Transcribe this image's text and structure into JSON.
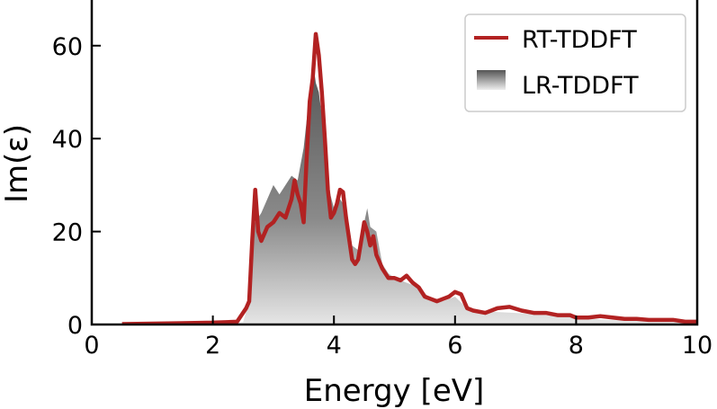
{
  "chart_data": {
    "type": "line",
    "title": "",
    "xlabel": "Energy [eV]",
    "ylabel": "Im(ε)",
    "xlim": [
      0,
      10
    ],
    "ylim": [
      0,
      70
    ],
    "xticks": [
      0,
      2,
      4,
      6,
      8,
      10
    ],
    "yticks": [
      0,
      20,
      40,
      60
    ],
    "grid": false,
    "legend_position": "upper right",
    "series": [
      {
        "name": "RT-TDDFT",
        "style": "line",
        "color": "#b22222",
        "x": [
          0.5,
          1.0,
          1.5,
          2.0,
          2.4,
          2.55,
          2.6,
          2.65,
          2.7,
          2.75,
          2.8,
          2.9,
          3.0,
          3.1,
          3.2,
          3.3,
          3.35,
          3.4,
          3.45,
          3.5,
          3.55,
          3.6,
          3.65,
          3.7,
          3.75,
          3.8,
          3.85,
          3.9,
          3.95,
          4.0,
          4.05,
          4.1,
          4.15,
          4.2,
          4.3,
          4.35,
          4.4,
          4.5,
          4.55,
          4.6,
          4.65,
          4.7,
          4.8,
          4.9,
          5.0,
          5.1,
          5.2,
          5.3,
          5.4,
          5.5,
          5.6,
          5.7,
          5.8,
          5.9,
          6.0,
          6.1,
          6.2,
          6.3,
          6.5,
          6.7,
          6.9,
          7.1,
          7.3,
          7.5,
          7.7,
          7.9,
          8.0,
          8.2,
          8.4,
          8.6,
          8.8,
          9.0,
          9.2,
          9.4,
          9.6,
          9.8,
          10.0
        ],
        "y": [
          0.1,
          0.2,
          0.3,
          0.4,
          0.6,
          3.5,
          5.0,
          18.0,
          29.0,
          20.0,
          18.0,
          21.0,
          22.0,
          24.0,
          23.0,
          27.0,
          31.0,
          28.0,
          26.0,
          22.0,
          36.0,
          48.0,
          53.0,
          62.5,
          58.0,
          50.0,
          40.0,
          29.0,
          23.0,
          24.0,
          26.0,
          29.0,
          28.5,
          23.0,
          14.0,
          13.0,
          14.0,
          22.0,
          20.0,
          17.0,
          19.0,
          15.0,
          12.0,
          10.0,
          10.0,
          9.5,
          10.5,
          9.0,
          8.0,
          6.0,
          5.5,
          5.0,
          5.5,
          6.0,
          7.0,
          6.5,
          3.5,
          3.0,
          2.5,
          3.5,
          3.8,
          3.0,
          2.5,
          2.5,
          2.0,
          2.0,
          1.5,
          1.5,
          1.8,
          1.5,
          1.2,
          1.2,
          1.0,
          1.0,
          1.0,
          0.6,
          0.6
        ]
      },
      {
        "name": "LR-TDDFT",
        "style": "filled-area-gradient",
        "color": "#666666",
        "x": [
          0.5,
          1.0,
          2.0,
          2.5,
          2.6,
          2.65,
          2.7,
          2.8,
          2.9,
          3.0,
          3.1,
          3.2,
          3.3,
          3.4,
          3.5,
          3.6,
          3.65,
          3.7,
          3.75,
          3.8,
          3.9,
          4.0,
          4.1,
          4.2,
          4.3,
          4.4,
          4.5,
          4.55,
          4.6,
          4.7,
          4.8,
          4.9,
          5.0,
          5.2,
          5.4,
          5.6,
          5.8,
          6.0,
          6.2,
          6.5,
          7.0,
          7.5,
          8.0,
          8.5,
          9.0,
          9.5,
          10.0
        ],
        "y": [
          0.0,
          0.0,
          0.1,
          0.5,
          5.0,
          18.0,
          22.0,
          24.0,
          27.0,
          30.0,
          28.0,
          30.0,
          32.0,
          31.0,
          38.0,
          50.0,
          57.0,
          52.0,
          50.0,
          45.0,
          30.0,
          25.0,
          27.0,
          25.0,
          17.0,
          16.0,
          22.0,
          25.0,
          21.0,
          20.0,
          13.0,
          11.0,
          10.0,
          9.0,
          8.0,
          5.5,
          5.0,
          6.0,
          3.5,
          2.8,
          2.5,
          2.0,
          1.5,
          1.0,
          0.8,
          0.7,
          0.5
        ]
      }
    ]
  },
  "legend": {
    "items": [
      {
        "label": "RT-TDDFT",
        "symbol": "line",
        "color": "#b22222"
      },
      {
        "label": "LR-TDDFT",
        "symbol": "gradient-patch",
        "color": "#666666"
      }
    ]
  },
  "axes": {
    "xlabel": "Energy [eV]",
    "ylabel": "Im(ε)",
    "xtick_labels": [
      "0",
      "2",
      "4",
      "6",
      "8",
      "10"
    ],
    "ytick_labels": [
      "0",
      "20",
      "40",
      "60"
    ]
  }
}
